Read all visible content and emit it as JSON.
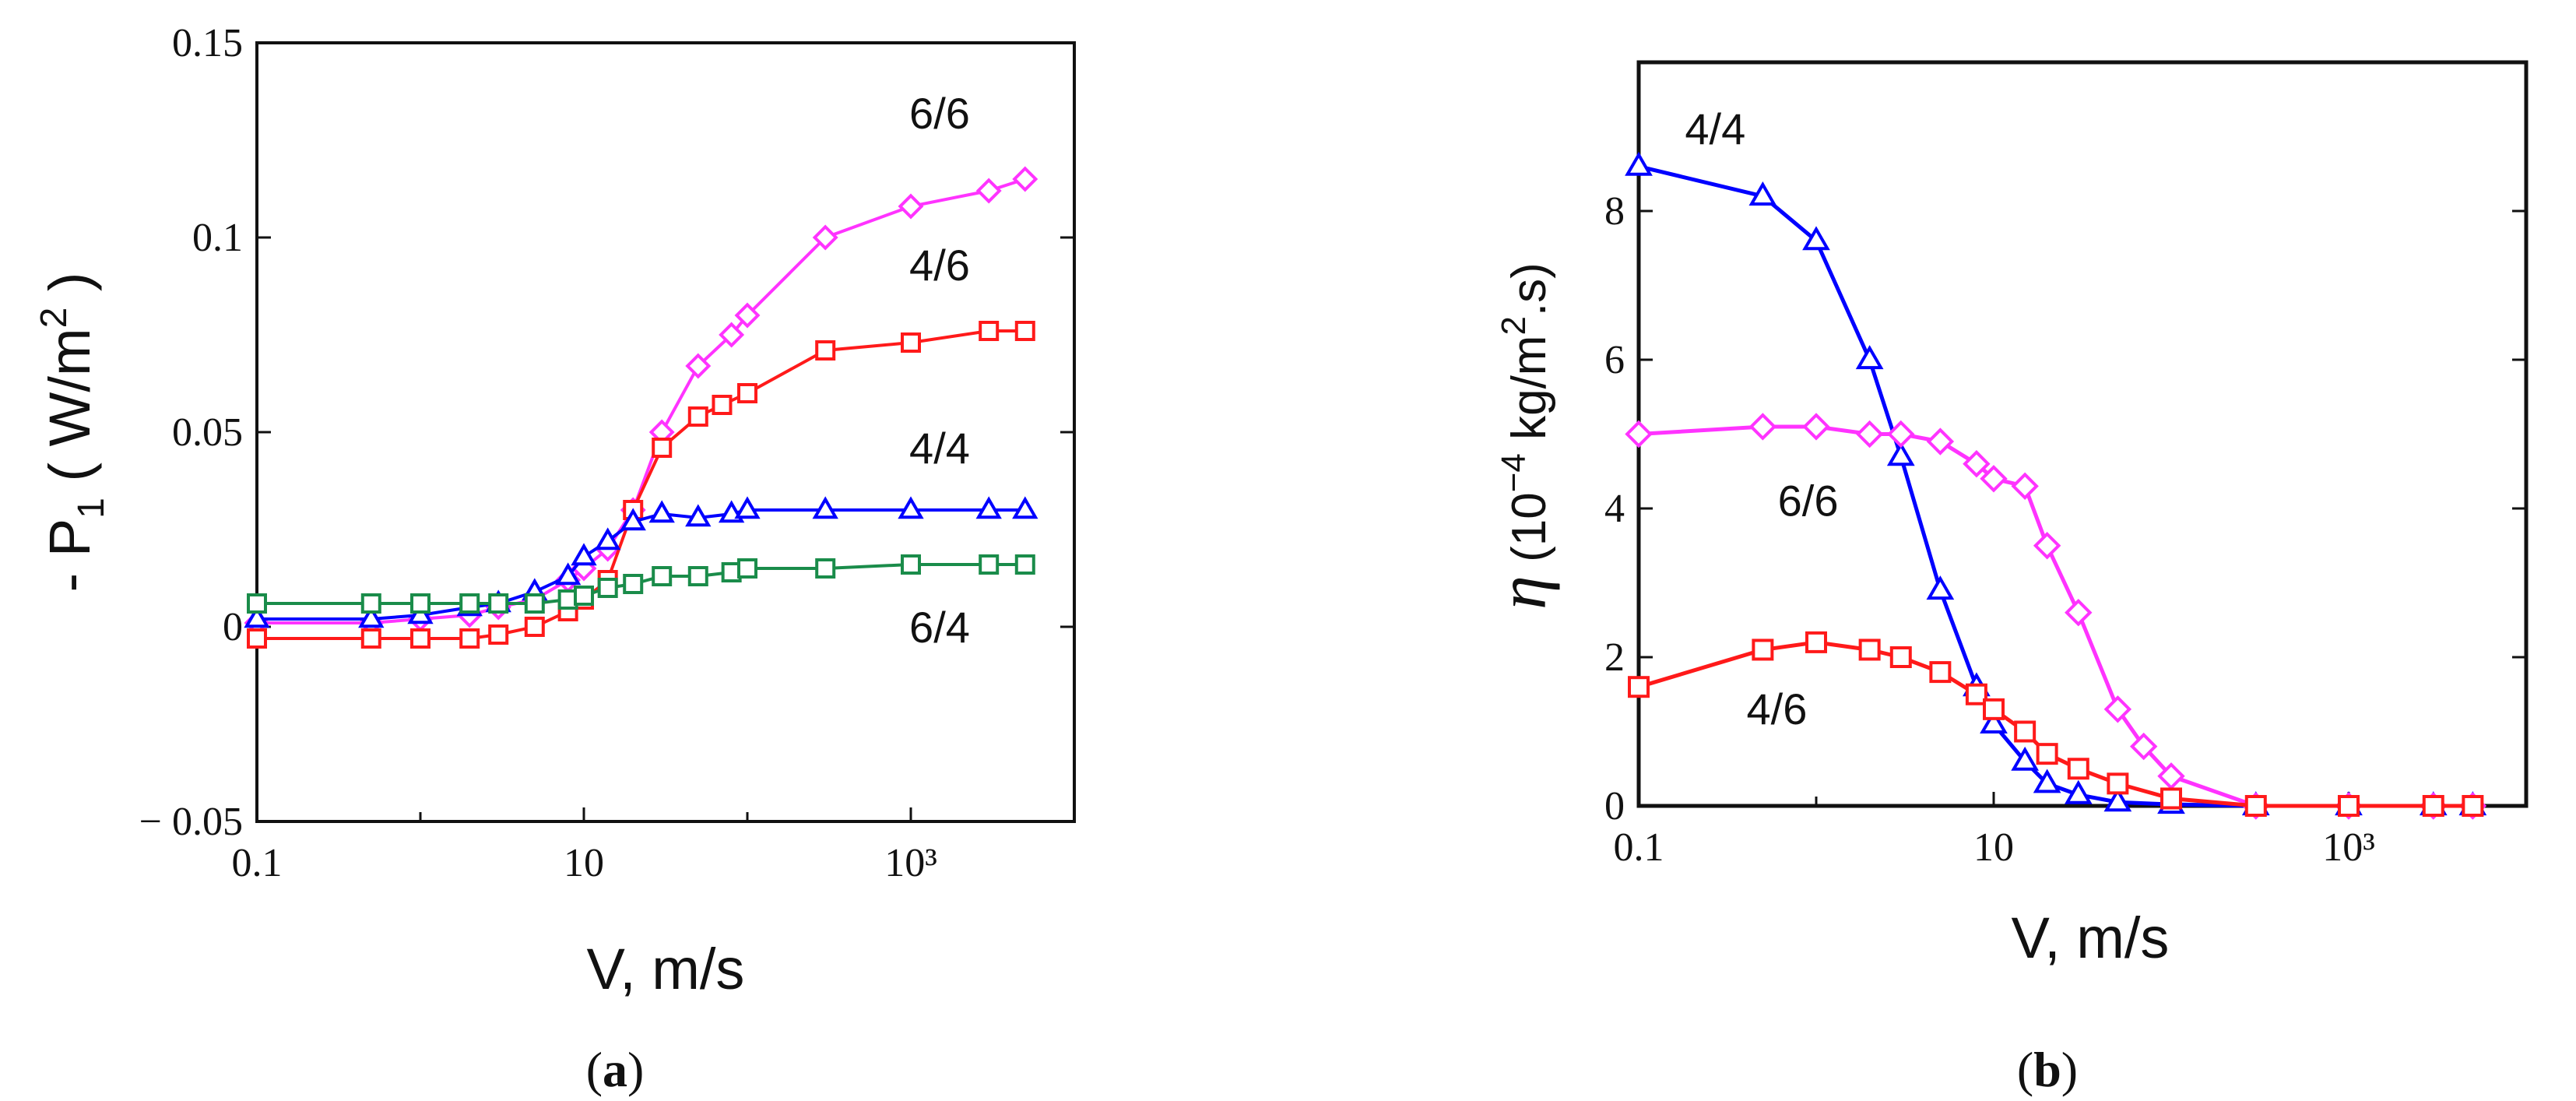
{
  "chart_data": [
    {
      "panel": "a",
      "type": "line",
      "caption": "(a)",
      "x_scale": "log",
      "xlim": [
        0.1,
        10000
      ],
      "ylim": [
        -0.05,
        0.15
      ],
      "xlabel": "V, m/s",
      "ylabel": "- P1 ( W/m2 )",
      "x_ticks": [
        {
          "value": 0.1,
          "label": "0.1"
        },
        {
          "value": 10,
          "label": "10"
        },
        {
          "value": 1000,
          "label": "10³"
        }
      ],
      "y_ticks": [
        {
          "value": -0.05,
          "label": "− 0.05"
        },
        {
          "value": 0,
          "label": "0"
        },
        {
          "value": 0.05,
          "label": "0.05"
        },
        {
          "value": 0.1,
          "label": "0.1"
        },
        {
          "value": 0.15,
          "label": "0.15"
        }
      ],
      "series": [
        {
          "name": "6/6",
          "color": "#ff33ff",
          "marker": "diamond",
          "x": [
            0.1,
            0.5,
            1,
            2,
            3,
            5,
            8,
            10,
            14,
            20,
            30,
            50,
            80,
            100,
            300,
            1000,
            3000,
            5000
          ],
          "y": [
            0.001,
            0.001,
            0.002,
            0.003,
            0.005,
            0.007,
            0.012,
            0.015,
            0.02,
            0.03,
            0.05,
            0.067,
            0.075,
            0.08,
            0.1,
            0.108,
            0.112,
            0.115
          ]
        },
        {
          "name": "4/6",
          "color": "#ff1a1a",
          "marker": "square",
          "x": [
            0.1,
            0.5,
            1,
            2,
            3,
            5,
            8,
            10,
            14,
            20,
            30,
            50,
            70,
            100,
            300,
            1000,
            3000,
            5000
          ],
          "y": [
            -0.003,
            -0.003,
            -0.003,
            -0.003,
            -0.002,
            0.0,
            0.004,
            0.007,
            0.012,
            0.03,
            0.046,
            0.054,
            0.057,
            0.06,
            0.071,
            0.073,
            0.076,
            0.076
          ]
        },
        {
          "name": "4/4",
          "color": "#0000ff",
          "marker": "triangle",
          "x": [
            0.1,
            0.5,
            1,
            2,
            3,
            5,
            8,
            10,
            14,
            20,
            30,
            50,
            80,
            100,
            300,
            1000,
            3000,
            5000
          ],
          "y": [
            0.002,
            0.002,
            0.003,
            0.005,
            0.006,
            0.009,
            0.013,
            0.018,
            0.022,
            0.027,
            0.029,
            0.028,
            0.029,
            0.03,
            0.03,
            0.03,
            0.03,
            0.03
          ]
        },
        {
          "name": "6/4",
          "color": "#1a8c4a",
          "marker": "square",
          "x": [
            0.1,
            0.5,
            1,
            2,
            3,
            5,
            8,
            10,
            14,
            20,
            30,
            50,
            80,
            100,
            300,
            1000,
            3000,
            5000
          ],
          "y": [
            0.006,
            0.006,
            0.006,
            0.006,
            0.006,
            0.006,
            0.007,
            0.008,
            0.01,
            0.011,
            0.013,
            0.013,
            0.014,
            0.015,
            0.015,
            0.016,
            0.016,
            0.016
          ]
        }
      ],
      "labels": [
        {
          "text": "6/6",
          "x": 1500,
          "y": 0.128
        },
        {
          "text": "4/6",
          "x": 1500,
          "y": 0.089
        },
        {
          "text": "4/4",
          "x": 1500,
          "y": 0.042
        },
        {
          "text": "6/4",
          "x": 1500,
          "y": -0.004
        }
      ]
    },
    {
      "panel": "b",
      "type": "line",
      "caption": "(b)",
      "x_scale": "log",
      "xlim": [
        0.1,
        10000
      ],
      "ylim": [
        0,
        10
      ],
      "xlabel": "V, m/s",
      "ylabel": "η (10⁻⁴ kg/m².s)",
      "x_ticks": [
        {
          "value": 0.1,
          "label": "0.1"
        },
        {
          "value": 10,
          "label": "10"
        },
        {
          "value": 1000,
          "label": "10³"
        }
      ],
      "y_ticks": [
        {
          "value": 0,
          "label": "0"
        },
        {
          "value": 2,
          "label": "2"
        },
        {
          "value": 4,
          "label": "4"
        },
        {
          "value": 6,
          "label": "6"
        },
        {
          "value": 8,
          "label": "8"
        }
      ],
      "series": [
        {
          "name": "4/4",
          "color": "#0000ff",
          "marker": "triangle",
          "x": [
            0.1,
            0.5,
            1,
            2,
            3,
            5,
            8,
            10,
            15,
            20,
            30,
            50,
            100,
            300,
            1000,
            3000,
            5000
          ],
          "y": [
            8.6,
            8.2,
            7.6,
            6.0,
            4.7,
            2.9,
            1.6,
            1.1,
            0.6,
            0.3,
            0.15,
            0.05,
            0.02,
            0.0,
            0.0,
            0.0,
            0.0
          ]
        },
        {
          "name": "6/6",
          "color": "#ff33ff",
          "marker": "diamond",
          "x": [
            0.1,
            0.5,
            1,
            2,
            3,
            5,
            8,
            10,
            15,
            20,
            30,
            50,
            70,
            100,
            300,
            1000,
            3000,
            5000
          ],
          "y": [
            5.0,
            5.1,
            5.1,
            5.0,
            5.0,
            4.9,
            4.6,
            4.4,
            4.3,
            3.5,
            2.6,
            1.3,
            0.8,
            0.4,
            0.0,
            0.0,
            0.0,
            0.0
          ]
        },
        {
          "name": "4/6",
          "color": "#ff1a1a",
          "marker": "square",
          "x": [
            0.1,
            0.5,
            1,
            2,
            3,
            5,
            8,
            10,
            15,
            20,
            30,
            50,
            100,
            300,
            1000,
            3000,
            5000
          ],
          "y": [
            1.6,
            2.1,
            2.2,
            2.1,
            2.0,
            1.8,
            1.5,
            1.3,
            1.0,
            0.7,
            0.5,
            0.3,
            0.1,
            0.0,
            0.0,
            0.0,
            0.0
          ]
        }
      ],
      "labels": [
        {
          "text": "4/4",
          "x": 0.27,
          "y": 8.9
        },
        {
          "text": "6/6",
          "x": 0.9,
          "y": 3.9
        },
        {
          "text": "4/6",
          "x": 0.6,
          "y": 1.1
        }
      ]
    }
  ]
}
